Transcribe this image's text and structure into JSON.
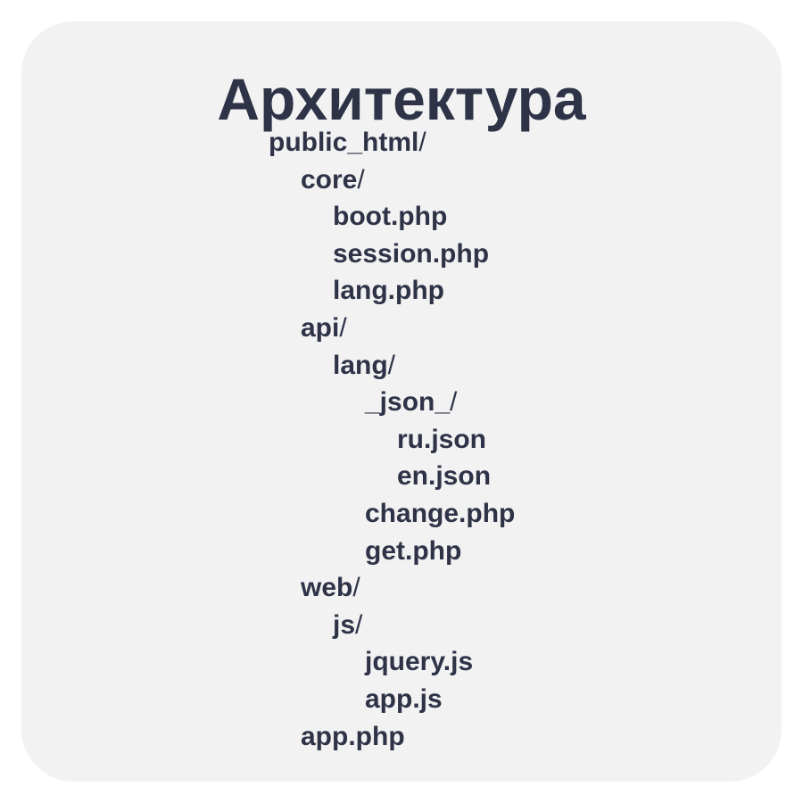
{
  "title": "Архитектура",
  "tree": [
    {
      "name": "public_html",
      "sep": "/",
      "depth": 0,
      "kind": "folder"
    },
    {
      "name": "core",
      "sep": "/",
      "depth": 1,
      "kind": "folder"
    },
    {
      "name": "boot.php",
      "sep": "",
      "depth": 2,
      "kind": "file"
    },
    {
      "name": "session.php",
      "sep": "",
      "depth": 2,
      "kind": "file"
    },
    {
      "name": "lang.php",
      "sep": "",
      "depth": 2,
      "kind": "file"
    },
    {
      "name": "api",
      "sep": "/",
      "depth": 1,
      "kind": "folder"
    },
    {
      "name": "lang",
      "sep": "/",
      "depth": 2,
      "kind": "folder"
    },
    {
      "name": "_json_",
      "sep": "/",
      "depth": 3,
      "kind": "folder"
    },
    {
      "name": "ru.json",
      "sep": "",
      "depth": 4,
      "kind": "file"
    },
    {
      "name": "en.json",
      "sep": "",
      "depth": 4,
      "kind": "file"
    },
    {
      "name": "change.php",
      "sep": "",
      "depth": 3,
      "kind": "file"
    },
    {
      "name": "get.php",
      "sep": "",
      "depth": 3,
      "kind": "file"
    },
    {
      "name": "web",
      "sep": "/",
      "depth": 1,
      "kind": "folder"
    },
    {
      "name": "js",
      "sep": "/",
      "depth": 2,
      "kind": "folder"
    },
    {
      "name": "jquery.js",
      "sep": "",
      "depth": 3,
      "kind": "file"
    },
    {
      "name": "app.js",
      "sep": "",
      "depth": 3,
      "kind": "file"
    },
    {
      "name": "app.php",
      "sep": "",
      "depth": 1,
      "kind": "file"
    }
  ]
}
